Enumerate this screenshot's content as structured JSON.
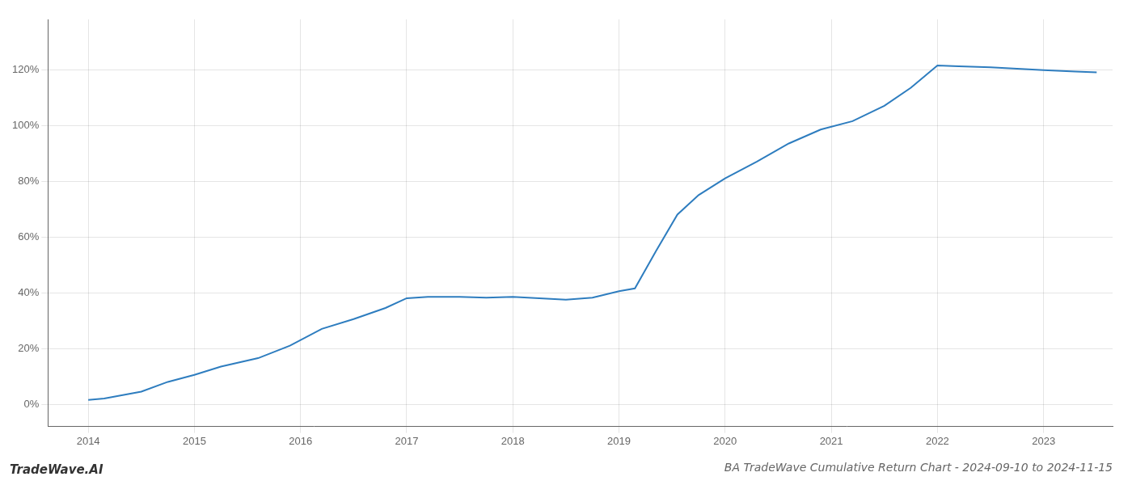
{
  "chart_data": {
    "type": "line",
    "title": "BA TradeWave Cumulative Return Chart - 2024-09-10 to 2024-11-15",
    "annotations": [
      "TradeWave.AI"
    ],
    "x": [
      2014.0,
      2014.15,
      2014.5,
      2014.75,
      2015.0,
      2015.25,
      2015.6,
      2015.9,
      2016.2,
      2016.5,
      2016.8,
      2017.0,
      2017.2,
      2017.5,
      2017.75,
      2018.0,
      2018.25,
      2018.5,
      2018.75,
      2019.0,
      2019.15,
      2019.35,
      2019.55,
      2019.75,
      2020.0,
      2020.3,
      2020.6,
      2020.9,
      2021.2,
      2021.5,
      2021.75,
      2022.0,
      2022.2,
      2022.5,
      2022.75,
      2023.0,
      2023.3,
      2023.5
    ],
    "values": [
      1.5,
      2.0,
      4.5,
      8.0,
      10.5,
      13.5,
      16.5,
      21.0,
      27.0,
      30.5,
      34.5,
      38.0,
      38.5,
      38.5,
      38.2,
      38.5,
      38.0,
      37.5,
      38.2,
      40.5,
      41.5,
      55.0,
      68.0,
      75.0,
      81.0,
      87.0,
      93.5,
      98.5,
      101.5,
      107.0,
      113.5,
      121.5,
      121.2,
      120.8,
      120.3,
      119.8,
      119.3,
      119.0
    ],
    "color": "#2e7dbf",
    "xlim": [
      2013.62,
      2023.65
    ],
    "ylim": [
      -8,
      138
    ],
    "xticks": [
      2014,
      2015,
      2016,
      2017,
      2018,
      2019,
      2020,
      2021,
      2022,
      2023
    ],
    "yticks": [
      {
        "value": 0,
        "label": "0%"
      },
      {
        "value": 20,
        "label": "20%"
      },
      {
        "value": 40,
        "label": "40%"
      },
      {
        "value": 60,
        "label": "60%"
      },
      {
        "value": 80,
        "label": "80%"
      },
      {
        "value": 100,
        "label": "100%"
      },
      {
        "value": 120,
        "label": "120%"
      }
    ],
    "grid": true
  }
}
